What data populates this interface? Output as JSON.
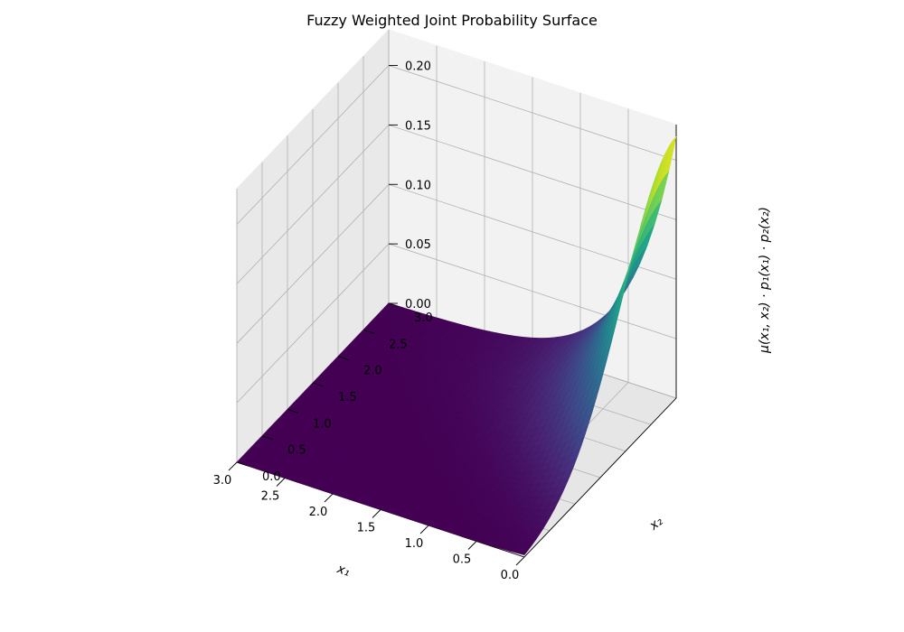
{
  "chart_data": {
    "type": "surface3d",
    "title": "Fuzzy Weighted Joint Probability Surface",
    "xlabel": "x₁",
    "ylabel": "x₂",
    "zlabel": "μ(x₁, x₂) · p₁(x₁) · p₂(x₂)",
    "xlim": [
      0,
      3
    ],
    "ylim": [
      0,
      3
    ],
    "zlim": [
      0,
      0.23
    ],
    "x_ticks": [
      "0.0",
      "0.5",
      "1.0",
      "1.5",
      "2.0",
      "2.5",
      "3.0"
    ],
    "y_ticks": [
      "0.0",
      "0.5",
      "1.0",
      "1.5",
      "2.0",
      "2.5",
      "3.0"
    ],
    "z_ticks": [
      "0.00",
      "0.05",
      "0.10",
      "0.15",
      "0.20"
    ],
    "z_peak": 0.22,
    "colormap": "viridis",
    "grid": true
  }
}
